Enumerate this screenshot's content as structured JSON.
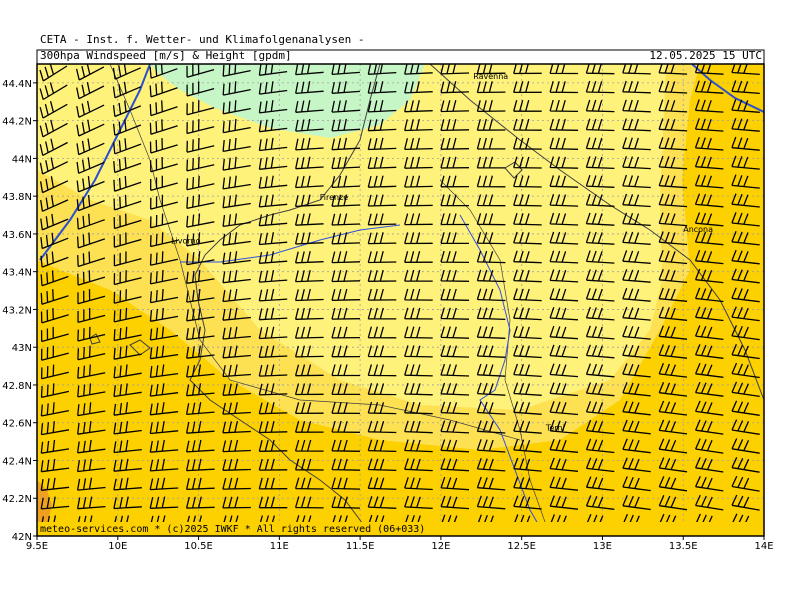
{
  "header": {
    "line1": "CETA - Inst. f. Wetter- und Klimafolgenanalysen -",
    "title": "300hpa Windspeed [m/s] & Height [gpdm]",
    "valid_time": "12.05.2025 15 UTC"
  },
  "footer": {
    "credit": "meteo-services.com * (c)2025 IWKF * All rights reserved (06+033)"
  },
  "map": {
    "lon_range": [
      9.5,
      14.0
    ],
    "lat_range": [
      42.0,
      44.5
    ],
    "lon_ticks": [
      {
        "value": 9.5,
        "label": "9.5E"
      },
      {
        "value": 10.0,
        "label": "10E"
      },
      {
        "value": 10.5,
        "label": "10.5E"
      },
      {
        "value": 11.0,
        "label": "11E"
      },
      {
        "value": 11.5,
        "label": "11.5E"
      },
      {
        "value": 12.0,
        "label": "12E"
      },
      {
        "value": 12.5,
        "label": "12.5E"
      },
      {
        "value": 13.0,
        "label": "13E"
      },
      {
        "value": 13.5,
        "label": "13.5E"
      },
      {
        "value": 14.0,
        "label": "14E"
      }
    ],
    "lat_ticks": [
      {
        "value": 42.0,
        "label": "42N"
      },
      {
        "value": 42.2,
        "label": "42.2N"
      },
      {
        "value": 42.4,
        "label": "42.4N"
      },
      {
        "value": 42.6,
        "label": "42.6N"
      },
      {
        "value": 42.8,
        "label": "42.8N"
      },
      {
        "value": 43.0,
        "label": "43N"
      },
      {
        "value": 43.2,
        "label": "43.2N"
      },
      {
        "value": 43.4,
        "label": "43.4N"
      },
      {
        "value": 43.6,
        "label": "43.6N"
      },
      {
        "value": 43.8,
        "label": "43.8N"
      },
      {
        "value": 44.0,
        "label": "44N"
      },
      {
        "value": 44.2,
        "label": "44.2N"
      },
      {
        "value": 44.4,
        "label": "44.4N"
      }
    ],
    "cities": [
      {
        "name": "Ravenna",
        "lon": 12.2,
        "lat": 44.42
      },
      {
        "name": "Firenze",
        "lon": 11.25,
        "lat": 43.78
      },
      {
        "name": "Livorno",
        "lon": 10.33,
        "lat": 43.55
      },
      {
        "name": "Ancona",
        "lon": 13.5,
        "lat": 43.61
      },
      {
        "name": "Terni",
        "lon": 12.65,
        "lat": 42.56
      }
    ],
    "colors": {
      "green_zone": "#c6f5c6",
      "light_yellow_zone": "#fff27a",
      "yellow_zone": "#fde153",
      "orange_zone": "#fdd000",
      "dark_orange_zone": "#f0a020",
      "height_contour": "#2a4fd0",
      "grid": "#a0a0a0",
      "coast": "#404040",
      "river": "#3050e0",
      "barb": "#000000"
    },
    "wind_barb_grid": {
      "columns": 20,
      "rows": 25
    }
  }
}
